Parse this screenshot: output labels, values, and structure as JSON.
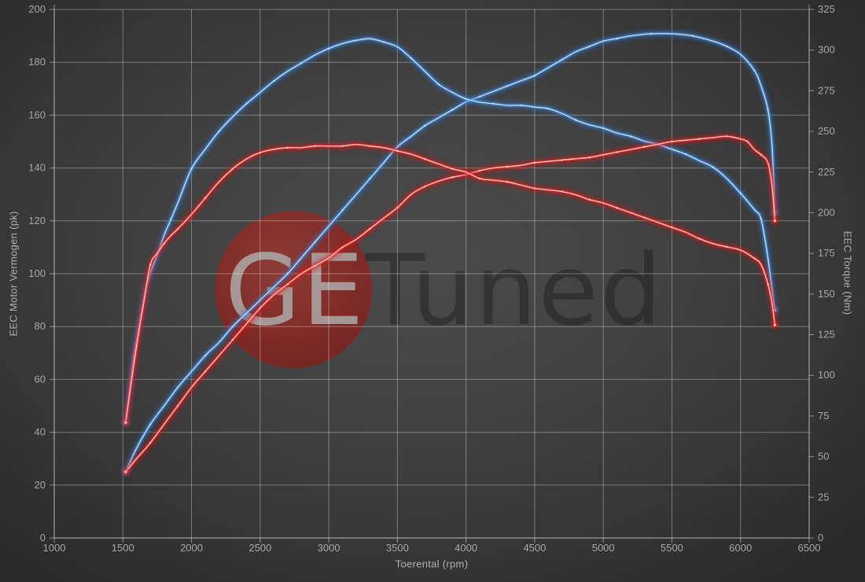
{
  "chart_data": {
    "type": "line",
    "title": "",
    "xlabel": "Toerental (rpm)",
    "ylabel_left": "EEC Motor Vermogen (pk)",
    "ylabel_right": "EEC Torque (Nm)",
    "x_range": [
      1000,
      6500
    ],
    "x_ticks": [
      1000,
      1500,
      2000,
      2500,
      3000,
      3500,
      4000,
      4500,
      5000,
      5500,
      6000,
      6500
    ],
    "y_left_range": [
      0,
      200
    ],
    "y_left_ticks": [
      0,
      20,
      40,
      60,
      80,
      100,
      120,
      140,
      160,
      180,
      200
    ],
    "y_right_range": [
      0,
      325
    ],
    "y_right_ticks": [
      0,
      25,
      50,
      75,
      100,
      125,
      150,
      175,
      200,
      225,
      250,
      275,
      300,
      325
    ],
    "grid": true,
    "legend_position": "none",
    "series": [
      {
        "name": "blue-power",
        "axis": "left",
        "unit": "pk",
        "color": "#4990dc",
        "points": [
          [
            1520,
            25
          ],
          [
            1600,
            34
          ],
          [
            1700,
            43
          ],
          [
            1800,
            50
          ],
          [
            1900,
            57
          ],
          [
            2000,
            63
          ],
          [
            2100,
            69
          ],
          [
            2200,
            74
          ],
          [
            2300,
            80
          ],
          [
            2400,
            85
          ],
          [
            2500,
            90
          ],
          [
            2600,
            95
          ],
          [
            2700,
            100
          ],
          [
            2800,
            106
          ],
          [
            2900,
            112
          ],
          [
            3000,
            118
          ],
          [
            3100,
            124
          ],
          [
            3200,
            130
          ],
          [
            3300,
            136
          ],
          [
            3400,
            142
          ],
          [
            3500,
            148
          ],
          [
            3600,
            152
          ],
          [
            3700,
            156
          ],
          [
            3800,
            159
          ],
          [
            3900,
            162
          ],
          [
            4000,
            165
          ],
          [
            4100,
            167
          ],
          [
            4200,
            169
          ],
          [
            4300,
            171
          ],
          [
            4400,
            173
          ],
          [
            4500,
            175
          ],
          [
            4600,
            178
          ],
          [
            4700,
            181
          ],
          [
            4800,
            184
          ],
          [
            4900,
            186
          ],
          [
            5000,
            188
          ],
          [
            5100,
            189
          ],
          [
            5200,
            190
          ],
          [
            5350,
            190.8
          ],
          [
            5500,
            190.8
          ],
          [
            5650,
            190
          ],
          [
            5800,
            188
          ],
          [
            5900,
            186
          ],
          [
            6000,
            183
          ],
          [
            6100,
            177
          ],
          [
            6150,
            171
          ],
          [
            6200,
            162
          ],
          [
            6230,
            148
          ],
          [
            6250,
            123
          ]
        ]
      },
      {
        "name": "blue-torque",
        "axis": "right",
        "unit": "Nm",
        "color": "#4990dc",
        "points": [
          [
            1520,
            71
          ],
          [
            1550,
            92
          ],
          [
            1580,
            112
          ],
          [
            1620,
            132
          ],
          [
            1660,
            150
          ],
          [
            1700,
            163
          ],
          [
            1750,
            174
          ],
          [
            1800,
            186
          ],
          [
            1850,
            196
          ],
          [
            1900,
            206
          ],
          [
            2000,
            227
          ],
          [
            2100,
            239
          ],
          [
            2200,
            250
          ],
          [
            2300,
            259
          ],
          [
            2400,
            267
          ],
          [
            2500,
            274
          ],
          [
            2600,
            281
          ],
          [
            2700,
            287
          ],
          [
            2800,
            292
          ],
          [
            2900,
            297
          ],
          [
            3000,
            301
          ],
          [
            3100,
            304
          ],
          [
            3200,
            306
          ],
          [
            3300,
            307
          ],
          [
            3400,
            305
          ],
          [
            3500,
            302
          ],
          [
            3600,
            295
          ],
          [
            3700,
            287
          ],
          [
            3800,
            279
          ],
          [
            3900,
            274
          ],
          [
            4000,
            270
          ],
          [
            4100,
            268
          ],
          [
            4200,
            267
          ],
          [
            4300,
            266
          ],
          [
            4400,
            266
          ],
          [
            4500,
            265
          ],
          [
            4600,
            264
          ],
          [
            4700,
            261
          ],
          [
            4800,
            257
          ],
          [
            4900,
            254
          ],
          [
            5000,
            252
          ],
          [
            5100,
            249
          ],
          [
            5200,
            247
          ],
          [
            5300,
            244
          ],
          [
            5400,
            242
          ],
          [
            5500,
            239
          ],
          [
            5600,
            236
          ],
          [
            5700,
            232
          ],
          [
            5800,
            228
          ],
          [
            5900,
            221
          ],
          [
            6000,
            212
          ],
          [
            6100,
            202
          ],
          [
            6150,
            196
          ],
          [
            6200,
            172
          ],
          [
            6230,
            152
          ],
          [
            6250,
            140
          ]
        ]
      },
      {
        "name": "red-power",
        "axis": "left",
        "unit": "pk",
        "color": "#ea2828",
        "points": [
          [
            1520,
            25
          ],
          [
            1600,
            30
          ],
          [
            1700,
            36
          ],
          [
            1800,
            43
          ],
          [
            1900,
            50
          ],
          [
            2000,
            57
          ],
          [
            2100,
            63
          ],
          [
            2200,
            69
          ],
          [
            2300,
            75
          ],
          [
            2400,
            81
          ],
          [
            2500,
            87
          ],
          [
            2600,
            92
          ],
          [
            2700,
            96
          ],
          [
            2800,
            100
          ],
          [
            2900,
            103
          ],
          [
            3000,
            106
          ],
          [
            3100,
            110
          ],
          [
            3200,
            113
          ],
          [
            3300,
            117
          ],
          [
            3400,
            121
          ],
          [
            3500,
            125
          ],
          [
            3600,
            130
          ],
          [
            3700,
            133
          ],
          [
            3800,
            135
          ],
          [
            3900,
            136.5
          ],
          [
            4000,
            137.5
          ],
          [
            4100,
            139
          ],
          [
            4200,
            140
          ],
          [
            4300,
            140.5
          ],
          [
            4400,
            141
          ],
          [
            4500,
            142
          ],
          [
            4600,
            142.5
          ],
          [
            4700,
            143
          ],
          [
            4800,
            143.5
          ],
          [
            4900,
            144
          ],
          [
            5000,
            145
          ],
          [
            5100,
            146
          ],
          [
            5200,
            147
          ],
          [
            5300,
            148
          ],
          [
            5400,
            149
          ],
          [
            5500,
            150
          ],
          [
            5600,
            150.5
          ],
          [
            5700,
            151
          ],
          [
            5800,
            151.5
          ],
          [
            5900,
            152
          ],
          [
            6000,
            151
          ],
          [
            6050,
            150
          ],
          [
            6100,
            147
          ],
          [
            6150,
            145
          ],
          [
            6200,
            142
          ],
          [
            6230,
            133
          ],
          [
            6250,
            120
          ]
        ]
      },
      {
        "name": "red-torque",
        "axis": "right",
        "unit": "Nm",
        "color": "#ea2828",
        "points": [
          [
            1520,
            71
          ],
          [
            1560,
            95
          ],
          [
            1600,
            118
          ],
          [
            1650,
            144
          ],
          [
            1700,
            168
          ],
          [
            1750,
            175
          ],
          [
            1800,
            181
          ],
          [
            1850,
            186
          ],
          [
            1900,
            190
          ],
          [
            2000,
            199
          ],
          [
            2100,
            209
          ],
          [
            2200,
            219
          ],
          [
            2300,
            227
          ],
          [
            2400,
            233
          ],
          [
            2500,
            237
          ],
          [
            2600,
            239
          ],
          [
            2700,
            240
          ],
          [
            2800,
            240
          ],
          [
            2900,
            241
          ],
          [
            3000,
            241
          ],
          [
            3100,
            241
          ],
          [
            3200,
            242
          ],
          [
            3300,
            241
          ],
          [
            3400,
            240
          ],
          [
            3500,
            238
          ],
          [
            3600,
            236
          ],
          [
            3700,
            233
          ],
          [
            3800,
            230
          ],
          [
            3900,
            227
          ],
          [
            4000,
            225
          ],
          [
            4100,
            221
          ],
          [
            4200,
            220
          ],
          [
            4300,
            219
          ],
          [
            4400,
            217
          ],
          [
            4500,
            215
          ],
          [
            4600,
            214
          ],
          [
            4700,
            213
          ],
          [
            4800,
            211
          ],
          [
            4900,
            208
          ],
          [
            5000,
            206
          ],
          [
            5100,
            203
          ],
          [
            5200,
            200
          ],
          [
            5300,
            197
          ],
          [
            5400,
            194
          ],
          [
            5500,
            191
          ],
          [
            5600,
            188
          ],
          [
            5700,
            184
          ],
          [
            5800,
            181
          ],
          [
            5900,
            179
          ],
          [
            6000,
            177
          ],
          [
            6100,
            172
          ],
          [
            6150,
            168
          ],
          [
            6200,
            156
          ],
          [
            6230,
            144
          ],
          [
            6250,
            131
          ]
        ]
      }
    ]
  },
  "watermark": {
    "prefix": "GE",
    "suffix": "Tuned",
    "circle_color": "#a31b15"
  },
  "style": {
    "blue": {
      "glow": "#2e6fbe",
      "mid": "#4990dc",
      "core": "#cfe2f6"
    },
    "red": {
      "glow": "#cf1616",
      "mid": "#ea2828",
      "core": "#ffd6d0"
    },
    "grid_color": "rgba(255,255,255,0.34)",
    "axis_color": "rgba(255,255,255,0.46)",
    "tick_label_color": "#a8a8a8",
    "axis_title_color": "#b2b2b2",
    "watermark_ge_color": "rgba(175,175,175,0.82)",
    "watermark_tuned_color": "rgba(20,20,20,0.38)"
  }
}
